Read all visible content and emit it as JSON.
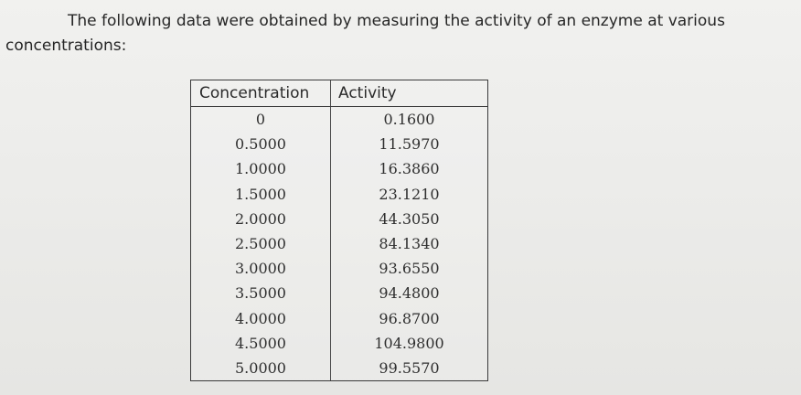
{
  "intro": {
    "line1": "The following data were obtained by measuring the activity of an enzyme at various",
    "line2": "concentrations:"
  },
  "table": {
    "headers": [
      "Concentration",
      "Activity"
    ],
    "rows": [
      {
        "concentration": "0",
        "activity": "0.1600"
      },
      {
        "concentration": "0.5000",
        "activity": "11.5970"
      },
      {
        "concentration": "1.0000",
        "activity": "16.3860"
      },
      {
        "concentration": "1.5000",
        "activity": "23.1210"
      },
      {
        "concentration": "2.0000",
        "activity": "44.3050"
      },
      {
        "concentration": "2.5000",
        "activity": "84.1340"
      },
      {
        "concentration": "3.0000",
        "activity": "93.6550"
      },
      {
        "concentration": "3.5000",
        "activity": "94.4800"
      },
      {
        "concentration": "4.0000",
        "activity": "96.8700"
      },
      {
        "concentration": "4.5000",
        "activity": "104.9800"
      },
      {
        "concentration": "5.0000",
        "activity": "99.5570"
      }
    ]
  }
}
